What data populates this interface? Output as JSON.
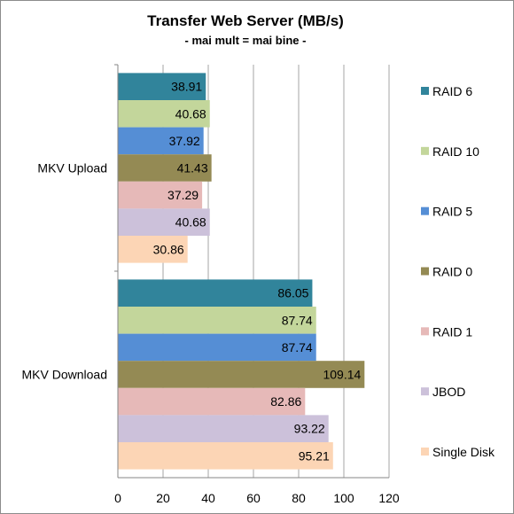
{
  "chart_data": {
    "type": "bar",
    "orientation": "horizontal",
    "title": "Transfer Web Server (MB/s)",
    "subtitle": "- mai mult = mai bine -",
    "categories": [
      "MKV Upload",
      "MKV Download"
    ],
    "series": [
      {
        "name": "RAID 6",
        "color": "#31849b",
        "values": [
          38.91,
          86.05
        ]
      },
      {
        "name": "RAID 10",
        "color": "#c3d69b",
        "values": [
          40.68,
          87.74
        ]
      },
      {
        "name": "RAID 5",
        "color": "#558ed5",
        "values": [
          37.92,
          87.74
        ]
      },
      {
        "name": "RAID 0",
        "color": "#948a54",
        "values": [
          41.43,
          109.14
        ]
      },
      {
        "name": "RAID 1",
        "color": "#e6b9b8",
        "values": [
          37.29,
          82.86
        ]
      },
      {
        "name": "JBOD",
        "color": "#ccc1da",
        "values": [
          40.68,
          93.22
        ]
      },
      {
        "name": "Single Disk",
        "color": "#fcd5b5",
        "values": [
          30.86,
          95.21
        ]
      }
    ],
    "xlim": [
      0,
      120
    ],
    "xticks": [
      0,
      20,
      40,
      60,
      80,
      100,
      120
    ],
    "grid": true,
    "legend_position": "right",
    "data_labels": true
  }
}
